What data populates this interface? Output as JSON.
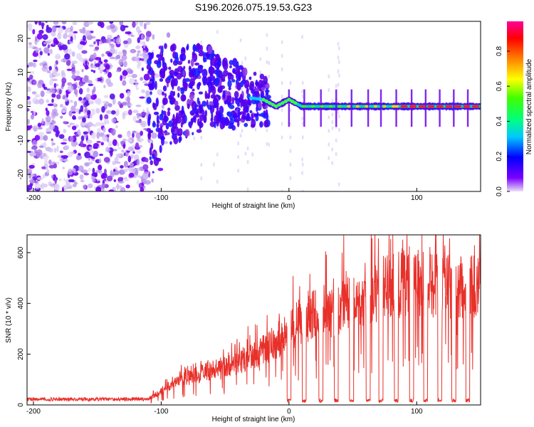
{
  "figure_title": "S196.2026.075.19.53.G23",
  "colors": {
    "snr_line": "#e8302a",
    "frame": "#000000",
    "colorbar_stops": [
      "#e8e0f6",
      "#7a00ff",
      "#0000ff",
      "#00c8ff",
      "#00ff80",
      "#40ff00",
      "#ffff00",
      "#ff8000",
      "#ff0000",
      "#ff0099"
    ]
  },
  "chart_data": [
    {
      "type": "heatmap",
      "title": "S196.2026.075.19.53.G23",
      "xlabel": "Height of straight line (km)",
      "ylabel": "Frequency (Hz)",
      "xlim": [
        -205,
        150
      ],
      "ylim": [
        -25,
        25
      ],
      "xticks": [
        -200,
        -100,
        0,
        100
      ],
      "yticks": [
        -20,
        -10,
        0,
        10,
        20
      ],
      "colorbar": {
        "label": "Normalized spectral amplitude",
        "range": [
          0,
          0.97
        ],
        "ticks": [
          0.0,
          0.2,
          0.4,
          0.6,
          0.8
        ]
      },
      "ridge_frequency_hz": [
        {
          "x": -100,
          "f": 2
        },
        {
          "x": -80,
          "f": 5
        },
        {
          "x": -60,
          "f": 6
        },
        {
          "x": -40,
          "f": 3
        },
        {
          "x": -20,
          "f": 2
        },
        {
          "x": -10,
          "f": 0
        },
        {
          "x": 0,
          "f": 2
        },
        {
          "x": 10,
          "f": 0
        },
        {
          "x": 150,
          "f": 0
        }
      ]
    },
    {
      "type": "line",
      "xlabel": "Height of straight line (km)",
      "ylabel": "SNR (10 * v/v)",
      "xlim": [
        -205,
        150
      ],
      "ylim": [
        0,
        670
      ],
      "xticks": [
        -200,
        -100,
        0,
        100
      ],
      "yticks": [
        0,
        200,
        400,
        600
      ],
      "series": [
        {
          "name": "SNR",
          "envelope": [
            {
              "x": -205,
              "y": 20
            },
            {
              "x": -110,
              "y": 25
            },
            {
              "x": -90,
              "y": 90
            },
            {
              "x": -70,
              "y": 130
            },
            {
              "x": -50,
              "y": 160
            },
            {
              "x": -30,
              "y": 200
            },
            {
              "x": -10,
              "y": 260
            },
            {
              "x": 0,
              "y": 320
            },
            {
              "x": 20,
              "y": 380
            },
            {
              "x": 40,
              "y": 400
            },
            {
              "x": 60,
              "y": 450
            },
            {
              "x": 80,
              "y": 500
            },
            {
              "x": 100,
              "y": 520
            },
            {
              "x": 120,
              "y": 500
            },
            {
              "x": 150,
              "y": 480
            }
          ],
          "dropouts_x": [
            0,
            12,
            25,
            37,
            49,
            62,
            72,
            84,
            96,
            107,
            118,
            129,
            140
          ]
        }
      ]
    }
  ]
}
